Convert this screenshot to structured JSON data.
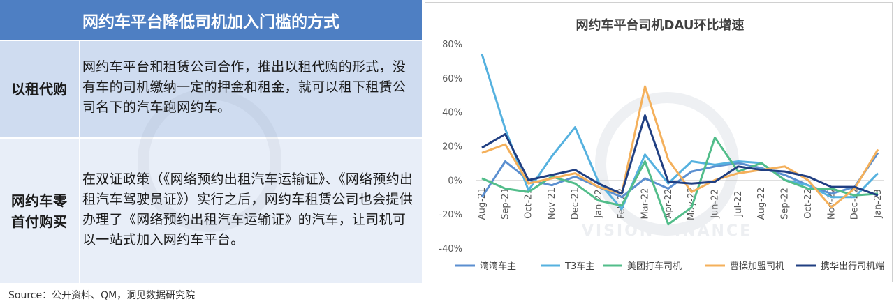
{
  "table": {
    "title": "网约车平台降低司机加入门槛的方式",
    "rows": [
      {
        "label": "以租代购",
        "text": "网约车平台和租赁公司合作，推出以租代购的形式，没有车的司机缴纳一定的押金和租金，就可以租下租赁公司名下的汽车跑网约车。"
      },
      {
        "label": "网约车零首付购买",
        "text": "在双证政策（《网络预约出租汽车运输证》、《网络预约出租汽车驾驶员证》）实行之后，网约车租赁公司也会提供办理了《网络预约出租汽车运输证》的汽车，让司机可以一站式加入网约车平台。"
      }
    ]
  },
  "source": "Source：公开资料、QM，洞见数据研究院",
  "watermark_text": "VISION FINANCE",
  "chart_data": {
    "type": "line",
    "title": "网约车平台司机DAU环比增速",
    "categories": [
      "Aug-21",
      "Sep-21",
      "Oct-21",
      "Nov-21",
      "Dec-21",
      "Jan-22",
      "Feb-22",
      "Mar-22",
      "Apr-22",
      "May-22",
      "Jun-22",
      "Jul-22",
      "Aug-22",
      "Sep-22",
      "Oct-22",
      "Nov-22",
      "Dec-22",
      "Jan-23"
    ],
    "y_ticks": [
      "80%",
      "60%",
      "40%",
      "20%",
      "0%",
      "-20%",
      "-40%"
    ],
    "ylim": [
      -40,
      80
    ],
    "grid": false,
    "legend": "bottom",
    "series": [
      {
        "name": "滴滴车主",
        "color": "#5b8fd0",
        "values": [
          -10,
          11,
          0,
          -3,
          2,
          -4,
          -10,
          1,
          -5,
          5,
          8,
          10,
          7,
          3,
          -3,
          -8,
          -4,
          16
        ]
      },
      {
        "name": "T3车主",
        "color": "#55b1df",
        "values": [
          74,
          30,
          -6,
          14,
          31,
          -1,
          -17,
          15,
          -2,
          11,
          9,
          11,
          10,
          0,
          -3,
          -10,
          -10,
          4
        ]
      },
      {
        "name": "美团打车司机",
        "color": "#52bd8a",
        "values": [
          1,
          -5,
          -7,
          2,
          -2,
          -12,
          -15,
          11,
          -26,
          -16,
          25,
          5,
          10,
          0,
          -5,
          -5,
          -9,
          -8
        ]
      },
      {
        "name": "曹操加盟司机",
        "color": "#f4b05b",
        "values": [
          16,
          21,
          -2,
          1,
          4,
          -4,
          -8,
          55,
          12,
          -7,
          0,
          4,
          6,
          8,
          0,
          -16,
          -5,
          18
        ]
      },
      {
        "name": "携华出行司机端",
        "color": "#203f82",
        "values": [
          19,
          27,
          0,
          3,
          6,
          -2,
          -8,
          38,
          -1,
          -2,
          -1,
          8,
          6,
          5,
          2,
          -4,
          -4,
          -9
        ]
      }
    ]
  }
}
